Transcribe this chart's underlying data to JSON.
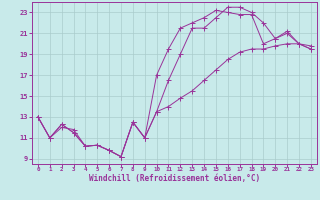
{
  "xlabel": "Windchill (Refroidissement éolien,°C)",
  "background_color": "#c8eaea",
  "grid_color": "#aacccc",
  "line_color": "#993399",
  "xlim": [
    -0.5,
    23.5
  ],
  "ylim": [
    8.5,
    24.0
  ],
  "xticks": [
    0,
    1,
    2,
    3,
    4,
    5,
    6,
    7,
    8,
    9,
    10,
    11,
    12,
    13,
    14,
    15,
    16,
    17,
    18,
    19,
    20,
    21,
    22,
    23
  ],
  "yticks": [
    9,
    11,
    13,
    15,
    17,
    19,
    21,
    23
  ],
  "line1_x": [
    0,
    1,
    2,
    3,
    4,
    5,
    6,
    7,
    8,
    9,
    10,
    11,
    12,
    13,
    14,
    15,
    16,
    17,
    18,
    19,
    20,
    21,
    22,
    23
  ],
  "line1_y": [
    13.0,
    11.0,
    12.3,
    11.5,
    10.2,
    10.3,
    9.8,
    9.2,
    12.5,
    11.0,
    17.0,
    19.5,
    21.5,
    22.0,
    22.5,
    23.2,
    23.0,
    22.8,
    22.8,
    20.0,
    20.5,
    21.0,
    20.0,
    19.5
  ],
  "line2_x": [
    0,
    1,
    2,
    3,
    4,
    5,
    6,
    7,
    8,
    9,
    10,
    11,
    12,
    13,
    14,
    15,
    16,
    17,
    18,
    19,
    20,
    21,
    22,
    23
  ],
  "line2_y": [
    13.0,
    11.0,
    12.3,
    11.5,
    10.2,
    10.3,
    9.8,
    9.2,
    12.5,
    11.0,
    13.5,
    16.5,
    19.0,
    21.5,
    21.5,
    22.5,
    23.5,
    23.5,
    23.0,
    22.0,
    20.5,
    21.2,
    20.0,
    19.8
  ],
  "line3_x": [
    0,
    1,
    2,
    3,
    4,
    5,
    6,
    7,
    8,
    9,
    10,
    11,
    12,
    13,
    14,
    15,
    16,
    17,
    18,
    19,
    20,
    21,
    22,
    23
  ],
  "line3_y": [
    13.0,
    11.0,
    12.0,
    11.8,
    10.2,
    10.3,
    9.8,
    9.2,
    12.5,
    11.0,
    13.5,
    14.0,
    14.8,
    15.5,
    16.5,
    17.5,
    18.5,
    19.2,
    19.5,
    19.5,
    19.8,
    20.0,
    20.0,
    19.5
  ]
}
